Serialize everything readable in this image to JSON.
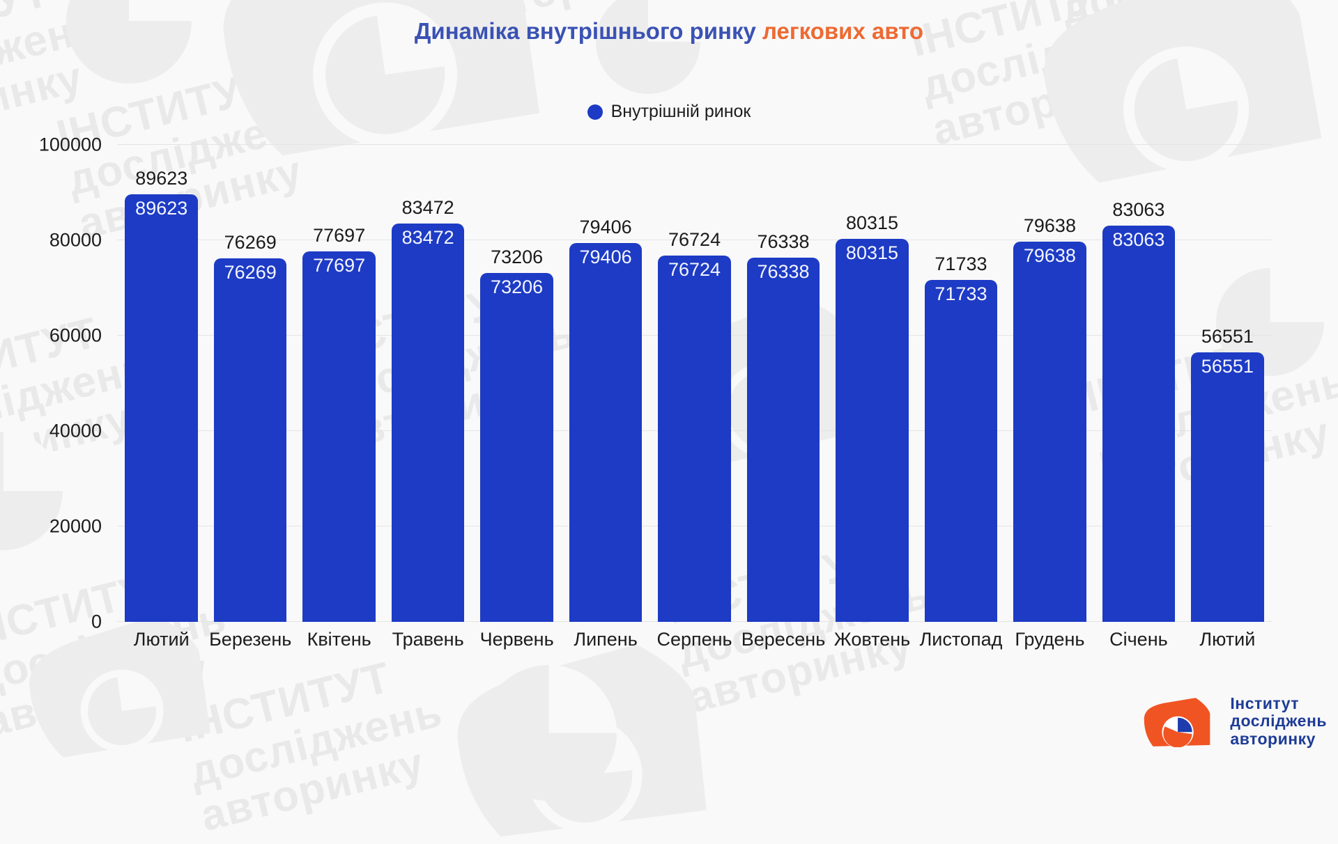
{
  "title": {
    "main": "Динаміка внутрішнього ринку",
    "highlight": "легкових авто"
  },
  "legend": {
    "label": "Внутрішній ринок"
  },
  "chart_data": {
    "type": "bar",
    "title": "Динаміка внутрішнього ринку легкових авто",
    "series_name": "Внутрішній ринок",
    "categories": [
      "Лютий",
      "Березень",
      "Квітень",
      "Травень",
      "Червень",
      "Липень",
      "Серпень",
      "Вересень",
      "Жовтень",
      "Листопад",
      "Грудень",
      "Січень",
      "Лютий"
    ],
    "values": [
      89623,
      76269,
      77697,
      83472,
      73206,
      79406,
      76724,
      76338,
      80315,
      71733,
      79638,
      83063,
      56551
    ],
    "data_labels": "above bar and inside bar top",
    "xlabel": "",
    "ylabel": "",
    "ylim": [
      0,
      100000
    ],
    "yticks": [
      0,
      20000,
      40000,
      60000,
      80000,
      100000
    ],
    "ytick_labels": [
      "0",
      "20000",
      "40000",
      "60000",
      "80000",
      "100000"
    ],
    "grid": true,
    "legend_position": "top center"
  },
  "colors": {
    "bar_blue": "#1d3bc4",
    "title_blue": "#3a52b4",
    "title_orange": "#ed6a33",
    "logo_orange": "#f05423",
    "logo_navy": "#1e3c96",
    "background": "#f9f9f9",
    "watermark_gray": "#e9e9e9"
  },
  "watermark": {
    "lines": [
      "ІНСТИТУТ",
      "досліджень",
      "авторинку"
    ]
  },
  "logo": {
    "lines": [
      "Інститут",
      "досліджень",
      "авторинку"
    ]
  }
}
